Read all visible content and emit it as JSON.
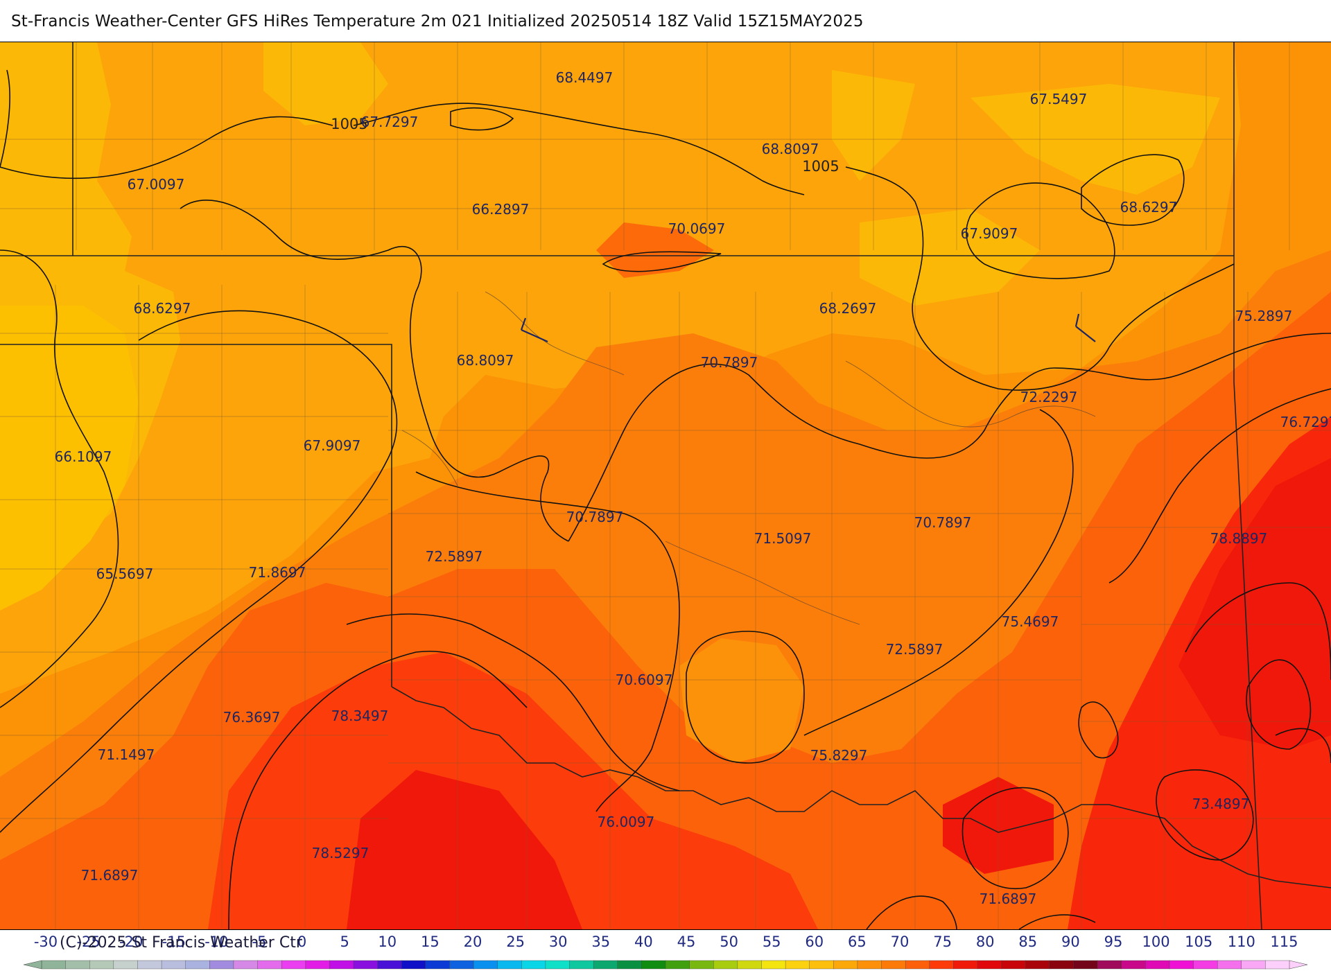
{
  "title": "St-Francis Weather-Center GFS HiRes Temperature 2m  021 Initialized 20250514 18Z Valid 15Z15MAY2025",
  "copyright": "(C)-2025 St Francis Weather Ctr",
  "pressure_labels": [
    "1005",
    "1005"
  ],
  "temperature_labels": [
    "68.4497",
    "67.7297",
    "67.0097",
    "66.2897",
    "70.0697",
    "68.8097",
    "67.5497",
    "67.9097",
    "68.6297",
    "68.6297",
    "68.2697",
    "68.8097",
    "70.7897",
    "75.2897",
    "72.2297",
    "66.1097",
    "67.9097",
    "76.7297",
    "70.7897",
    "71.5097",
    "70.7897",
    "72.5897",
    "78.8897",
    "65.5697",
    "71.8697",
    "75.4697",
    "72.5897",
    "70.6097",
    "76.3697",
    "78.3497",
    "75.8297",
    "71.1497",
    "73.4897",
    "76.0097",
    "78.5297",
    "71.6897",
    "71.6897"
  ],
  "colorbar": {
    "ticks": [
      "-30",
      "-25",
      "-20",
      "-15",
      "-10",
      "-5",
      "0",
      "5",
      "10",
      "15",
      "20",
      "25",
      "30",
      "35",
      "40",
      "45",
      "50",
      "55",
      "60",
      "65",
      "70",
      "75",
      "80",
      "85",
      "90",
      "95",
      "100",
      "105",
      "110",
      "115"
    ],
    "colors": [
      "#8fb49a",
      "#a3bfaa",
      "#b5c9b8",
      "#c6d0cc",
      "#c3c8dc",
      "#b9bedf",
      "#aab2e0",
      "#a18ce0",
      "#d688e6",
      "#e26cec",
      "#ea3ef0",
      "#e21ee6",
      "#c010e6",
      "#8a10e0",
      "#4a10d8",
      "#1010c8",
      "#0c3ad4",
      "#0e62e0",
      "#0a90ee",
      "#0ab8f0",
      "#0ad6e8",
      "#10e0c8",
      "#10c8a0",
      "#0ca870",
      "#0a9040",
      "#108c10",
      "#40a010",
      "#78b810",
      "#a8cc10",
      "#d0d810",
      "#f4e410",
      "#fcd210",
      "#fcc00c",
      "#fca80a",
      "#fc900a",
      "#fc7a0a",
      "#fc600a",
      "#fc3a0a",
      "#f01a0a",
      "#e0080a",
      "#c8060a",
      "#a8040a",
      "#8a0410",
      "#74041a",
      "#a00a5a",
      "#c80a8a",
      "#e00ab4",
      "#f012d4",
      "#f43ce4",
      "#f470ec",
      "#f8a8f4",
      "#fcd0fa"
    ]
  }
}
